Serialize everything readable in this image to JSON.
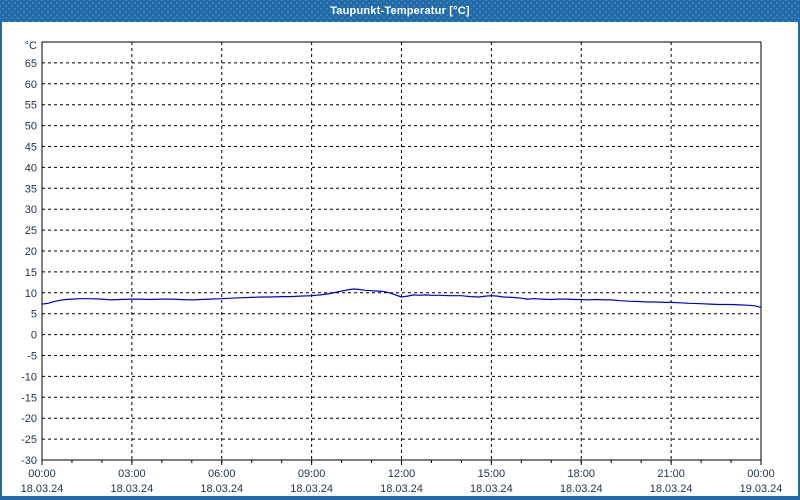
{
  "window": {
    "title": "Taupunkt-Temperatur [°C]",
    "titlebar_color": "#1F6AA8",
    "frame_color": "#1F6AA8"
  },
  "chart_data": {
    "type": "line",
    "title": "Taupunkt-Temperatur [°C]",
    "y_unit": "°C",
    "ylim": [
      -30,
      70
    ],
    "y_ticks": [
      65,
      60,
      55,
      50,
      45,
      40,
      35,
      30,
      25,
      20,
      15,
      10,
      5,
      0,
      -5,
      -10,
      -15,
      -20,
      -25,
      -30
    ],
    "x_span_hours": 24,
    "x_minor_step_hours": 1,
    "x_major_ticks": [
      {
        "h": 0,
        "time": "00:00",
        "date": "18.03.24"
      },
      {
        "h": 3,
        "time": "03:00",
        "date": "18.03.24"
      },
      {
        "h": 6,
        "time": "06:00",
        "date": "18.03.24"
      },
      {
        "h": 9,
        "time": "09:00",
        "date": "18.03.24"
      },
      {
        "h": 12,
        "time": "12:00",
        "date": "18.03.24"
      },
      {
        "h": 15,
        "time": "15:00",
        "date": "18.03.24"
      },
      {
        "h": 18,
        "time": "18:00",
        "date": "18.03.24"
      },
      {
        "h": 21,
        "time": "21:00",
        "date": "18.03.24"
      },
      {
        "h": 24,
        "time": "00:00",
        "date": "19.03.24"
      }
    ],
    "grid": "dashed",
    "legend": "none",
    "colors": {
      "line": "#0000CC",
      "grid": "#000000",
      "frame": "#000000",
      "labels": "#1B3350"
    },
    "series": [
      {
        "name": "Taupunkt",
        "points": [
          [
            0,
            7.3
          ],
          [
            0.2,
            7.5
          ],
          [
            0.4,
            7.9
          ],
          [
            0.6,
            8.2
          ],
          [
            0.8,
            8.4
          ],
          [
            1,
            8.5
          ],
          [
            1.3,
            8.6
          ],
          [
            1.6,
            8.6
          ],
          [
            2,
            8.5
          ],
          [
            2.3,
            8.3
          ],
          [
            2.6,
            8.4
          ],
          [
            3,
            8.5
          ],
          [
            3.3,
            8.5
          ],
          [
            3.6,
            8.4
          ],
          [
            4,
            8.5
          ],
          [
            4.3,
            8.5
          ],
          [
            4.6,
            8.4
          ],
          [
            5,
            8.3
          ],
          [
            5.3,
            8.4
          ],
          [
            5.6,
            8.5
          ],
          [
            6,
            8.6
          ],
          [
            6.3,
            8.7
          ],
          [
            6.6,
            8.8
          ],
          [
            7,
            8.9
          ],
          [
            7.3,
            9.0
          ],
          [
            7.6,
            9.0
          ],
          [
            8,
            9.1
          ],
          [
            8.3,
            9.1
          ],
          [
            8.6,
            9.2
          ],
          [
            9,
            9.3
          ],
          [
            9.3,
            9.5
          ],
          [
            9.6,
            9.8
          ],
          [
            9.8,
            10.1
          ],
          [
            10,
            10.4
          ],
          [
            10.2,
            10.7
          ],
          [
            10.4,
            10.9
          ],
          [
            10.6,
            10.8
          ],
          [
            10.8,
            10.6
          ],
          [
            11,
            10.5
          ],
          [
            11.2,
            10.4
          ],
          [
            11.4,
            10.3
          ],
          [
            11.6,
            10.0
          ],
          [
            11.8,
            9.5
          ],
          [
            12,
            9.0
          ],
          [
            12.2,
            9.2
          ],
          [
            12.4,
            9.5
          ],
          [
            12.6,
            9.4
          ],
          [
            12.8,
            9.5
          ],
          [
            13,
            9.4
          ],
          [
            13.3,
            9.4
          ],
          [
            13.6,
            9.3
          ],
          [
            14,
            9.3
          ],
          [
            14.3,
            9.1
          ],
          [
            14.6,
            9.0
          ],
          [
            14.8,
            9.2
          ],
          [
            15,
            9.3
          ],
          [
            15.2,
            9.2
          ],
          [
            15.4,
            9.0
          ],
          [
            15.7,
            8.9
          ],
          [
            16,
            8.7
          ],
          [
            16.2,
            8.5
          ],
          [
            16.4,
            8.6
          ],
          [
            16.7,
            8.5
          ],
          [
            17,
            8.4
          ],
          [
            17.2,
            8.5
          ],
          [
            17.5,
            8.5
          ],
          [
            17.8,
            8.4
          ],
          [
            18,
            8.4
          ],
          [
            18.2,
            8.3
          ],
          [
            18.5,
            8.4
          ],
          [
            18.8,
            8.3
          ],
          [
            19,
            8.3
          ],
          [
            19.3,
            8.1
          ],
          [
            19.6,
            8.0
          ],
          [
            20,
            7.9
          ],
          [
            20.2,
            7.8
          ],
          [
            20.5,
            7.8
          ],
          [
            20.8,
            7.7
          ],
          [
            21,
            7.7
          ],
          [
            21.3,
            7.6
          ],
          [
            21.6,
            7.5
          ],
          [
            22,
            7.4
          ],
          [
            22.3,
            7.3
          ],
          [
            22.6,
            7.2
          ],
          [
            23,
            7.2
          ],
          [
            23.3,
            7.1
          ],
          [
            23.6,
            7.0
          ],
          [
            23.8,
            6.9
          ],
          [
            24,
            6.5
          ]
        ]
      }
    ]
  }
}
